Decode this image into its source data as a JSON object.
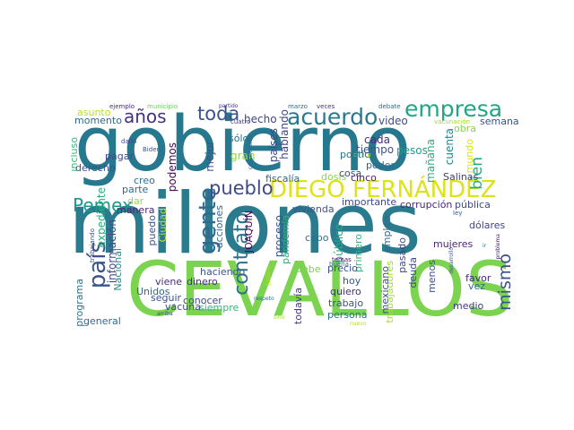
{
  "words": [
    {
      "id": "gobierno",
      "text": "gobierno",
      "color": "#26788e"
    },
    {
      "id": "millones",
      "text": "millones",
      "color": "#2a7b8e"
    },
    {
      "id": "cevallos",
      "text": "CEVALLOS",
      "color": "#7bd34f"
    },
    {
      "id": "diego",
      "text": "DIEGO FERNÁNDEZ",
      "color": "#dde318"
    },
    {
      "id": "acuerdo",
      "text": "acuerdo",
      "color": "#2a788e"
    },
    {
      "id": "empresa",
      "text": "empresa",
      "color": "#21a585"
    },
    {
      "id": "toda",
      "text": "toda",
      "color": "#3b528b"
    },
    {
      "id": "anos",
      "text": "años",
      "color": "#46337e"
    },
    {
      "id": "gente",
      "text": "gente",
      "color": "#31688e"
    },
    {
      "id": "pueblo",
      "text": "pueblo",
      "color": "#3e4a89"
    },
    {
      "id": "pais",
      "text": "país",
      "color": "#39568c"
    },
    {
      "id": "pemex",
      "text": "Pemex",
      "color": "#1f968b"
    },
    {
      "id": "contrato",
      "text": "contrato",
      "color": "#2c728e"
    },
    {
      "id": "mismo",
      "text": "mismo",
      "color": "#3b528b"
    },
    {
      "id": "bien",
      "text": "bien",
      "color": "#25ab82"
    },
    {
      "id": "hecho",
      "text": "hecho",
      "color": "#404588"
    },
    {
      "id": "video",
      "text": "video",
      "color": "#3e4c8a"
    },
    {
      "id": "semana",
      "text": "semana",
      "color": "#3b528b"
    },
    {
      "id": "asunto",
      "text": "asunto",
      "color": "#b5de2b"
    },
    {
      "id": "momento",
      "text": "momento",
      "color": "#31688e"
    },
    {
      "id": "ejemplo",
      "text": "ejemplo",
      "color": "#482878"
    },
    {
      "id": "municipio",
      "text": "municipio",
      "color": "#6ece58"
    },
    {
      "id": "marzo",
      "text": "marzo",
      "color": "#2d708e"
    },
    {
      "id": "veces",
      "text": "veces",
      "color": "#46337e"
    },
    {
      "id": "debate",
      "text": "debate",
      "color": "#31688e"
    },
    {
      "id": "vacunacion",
      "text": "vacunación",
      "color": "#a0da39"
    },
    {
      "id": "incluso",
      "text": "incluso",
      "color": "#35b779"
    },
    {
      "id": "dano",
      "text": "daño",
      "color": "#3e4989"
    },
    {
      "id": "biden",
      "text": "Biden",
      "color": "#3b528b"
    },
    {
      "id": "pagar",
      "text": "pagar",
      "color": "#3e4989"
    },
    {
      "id": "podemos",
      "text": "podemos",
      "color": "#440154"
    },
    {
      "id": "solo",
      "text": "sólo",
      "color": "#2c728e"
    },
    {
      "id": "partido",
      "text": "partido",
      "color": "#46337e"
    },
    {
      "id": "cuatro",
      "text": "cuatro",
      "color": "#453781"
    },
    {
      "id": "paises",
      "text": "países",
      "color": "#3e4989"
    },
    {
      "id": "hablando",
      "text": "hablando",
      "color": "#404688"
    },
    {
      "id": "delito",
      "text": "delito",
      "color": "#b8de29"
    },
    {
      "id": "cada",
      "text": "cada",
      "color": "#472d7b"
    },
    {
      "id": "tiempo",
      "text": "tiempo",
      "color": "#3b528b"
    },
    {
      "id": "politica",
      "text": "política",
      "color": "#2c738e"
    },
    {
      "id": "manana",
      "text": "mañana",
      "color": "#27ad81"
    },
    {
      "id": "cuenta",
      "text": "cuenta",
      "color": "#25858e"
    },
    {
      "id": "obra",
      "text": "obra",
      "color": "#84d44b"
    },
    {
      "id": "mundo",
      "text": "mundo",
      "color": "#dce319"
    },
    {
      "id": "mejor",
      "text": "mejor",
      "color": "#3b528b"
    },
    {
      "id": "gran",
      "text": "gran",
      "color": "#8fd744"
    },
    {
      "id": "poder",
      "text": "poder",
      "color": "#31688e"
    },
    {
      "id": "pesos",
      "text": "pesos",
      "color": "#1fa088"
    },
    {
      "id": "dosis",
      "text": "dosis",
      "color": "#8bd646"
    },
    {
      "id": "cosa",
      "text": "cosa",
      "color": "#3e4a89"
    },
    {
      "id": "cinco",
      "text": "cinco",
      "color": "#481f70"
    },
    {
      "id": "salinas",
      "text": "Salinas",
      "color": "#453781"
    },
    {
      "id": "derecho",
      "text": "derecho",
      "color": "#3b528b"
    },
    {
      "id": "creo",
      "text": "creo",
      "color": "#2c728e"
    },
    {
      "id": "parte",
      "text": "parte",
      "color": "#31688e"
    },
    {
      "id": "fiscalia",
      "text": "fiscalía",
      "color": "#31688e"
    },
    {
      "id": "construccion",
      "text": "construcción",
      "color": "#31688e"
    },
    {
      "id": "vivienda",
      "text": "vivienda",
      "color": "#3b528b"
    },
    {
      "id": "corrupcion",
      "text": "corrupción",
      "color": "#482878"
    },
    {
      "id": "publica",
      "text": "pública",
      "color": "#3e4a89"
    },
    {
      "id": "importante",
      "text": "importante",
      "color": "#3f4889"
    },
    {
      "id": "dar",
      "text": "dar",
      "color": "#a2da37"
    },
    {
      "id": "manera",
      "text": "manera",
      "color": "#482677"
    },
    {
      "id": "expediente",
      "text": "expediente",
      "color": "#29af7f"
    },
    {
      "id": "informacion",
      "text": "información",
      "color": "#3e4989"
    },
    {
      "id": "nacional",
      "text": "Nacional",
      "color": "#23898e"
    },
    {
      "id": "trabajando",
      "text": "trabajando",
      "color": "#3e4c8a"
    },
    {
      "id": "puedo",
      "text": "puedo",
      "color": "#3b528b"
    },
    {
      "id": "ciudad",
      "text": "Ciudad",
      "color": "#c0df25"
    },
    {
      "id": "acciones",
      "text": "acciones",
      "color": "#31688e"
    },
    {
      "id": "haciendo",
      "text": "haciendo",
      "color": "#3b528b"
    },
    {
      "id": "joaquin",
      "text": "JOAQUÍN",
      "color": "#440154"
    },
    {
      "id": "proceso",
      "text": "proceso",
      "color": "#3b528b"
    },
    {
      "id": "pandemia",
      "text": "pandemia",
      "color": "#29af7f"
    },
    {
      "id": "cabo",
      "text": "cabo",
      "color": "#2c728e"
    },
    {
      "id": "publico",
      "text": "público",
      "color": "#25ac82"
    },
    {
      "id": "primero",
      "text": "primero",
      "color": "#30b57a"
    },
    {
      "id": "empleo",
      "text": "empleo",
      "color": "#31688e"
    },
    {
      "id": "dolares",
      "text": "dólares",
      "color": "#404588"
    },
    {
      "id": "ley",
      "text": "ley",
      "color": "#3b528b"
    },
    {
      "id": "mujeres",
      "text": "mujeres",
      "color": "#482878"
    },
    {
      "id": "ir",
      "text": "ir",
      "color": "#2c728e"
    },
    {
      "id": "problema",
      "text": "problema",
      "color": "#481d6f"
    },
    {
      "id": "desarrollo",
      "text": "desarrollo",
      "color": "#3b528b"
    },
    {
      "id": "temas",
      "text": "temas",
      "color": "#481467"
    },
    {
      "id": "buena",
      "text": "buena",
      "color": "#2c728e"
    },
    {
      "id": "debe",
      "text": "debe",
      "color": "#7ad151"
    },
    {
      "id": "precio",
      "text": "precio",
      "color": "#3b528b"
    },
    {
      "id": "trabajadores",
      "text": "trabajadores",
      "color": "#a5db36"
    },
    {
      "id": "pasado",
      "text": "pasado",
      "color": "#3e4c8a"
    },
    {
      "id": "hoy",
      "text": "hoy",
      "color": "#3b528b"
    },
    {
      "id": "quiero",
      "text": "quiero",
      "color": "#472c7a"
    },
    {
      "id": "mexicano",
      "text": "mexicano",
      "color": "#3b528b"
    },
    {
      "id": "deuda",
      "text": "deuda",
      "color": "#3e4a89"
    },
    {
      "id": "menos",
      "text": "menos",
      "color": "#3b528b"
    },
    {
      "id": "favor",
      "text": "favor",
      "color": "#482878"
    },
    {
      "id": "vez",
      "text": "vez",
      "color": "#31688e"
    },
    {
      "id": "programa",
      "text": "programa",
      "color": "#2c728e"
    },
    {
      "id": "viene",
      "text": "viene",
      "color": "#472d7b"
    },
    {
      "id": "dinero",
      "text": "dinero",
      "color": "#46337e"
    },
    {
      "id": "unidos",
      "text": "Unidos",
      "color": "#31688e"
    },
    {
      "id": "seguir",
      "text": "seguir",
      "color": "#3b528b"
    },
    {
      "id": "vacuna",
      "text": "vacuna",
      "color": "#3e4a89"
    },
    {
      "id": "conocer",
      "text": "conocer",
      "color": "#3e4c8a"
    },
    {
      "id": "siempre",
      "text": "siempre",
      "color": "#35b779"
    },
    {
      "id": "respeto",
      "text": "respeto",
      "color": "#2c728e"
    },
    {
      "id": "justicia",
      "text": "justicia",
      "color": "#b5de2b"
    },
    {
      "id": "todavia",
      "text": "todavía",
      "color": "#453781"
    },
    {
      "id": "trabajo",
      "text": "trabajo",
      "color": "#3b528b"
    },
    {
      "id": "persona",
      "text": "persona",
      "color": "#2c728e"
    },
    {
      "id": "medio",
      "text": "medio",
      "color": "#453882"
    },
    {
      "id": "general",
      "text": "general",
      "color": "#31688e"
    },
    {
      "id": "arriba",
      "text": "arriba",
      "color": "#3e4989"
    },
    {
      "id": "sino",
      "text": "sino",
      "color": "#a8db34"
    },
    {
      "id": "nuevo",
      "text": "nuevo",
      "color": "#b5de2b"
    }
  ]
}
